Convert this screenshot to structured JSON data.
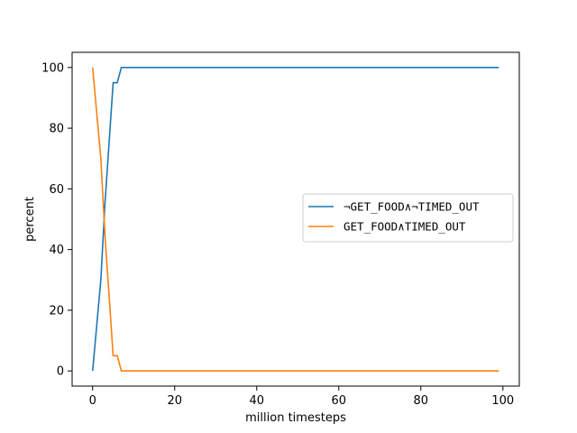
{
  "chart_data": {
    "type": "line",
    "xlabel": "million timesteps",
    "ylabel": "percent",
    "xlim": [
      -5,
      104
    ],
    "ylim": [
      -5,
      105
    ],
    "xticks": [
      0,
      20,
      40,
      60,
      80,
      100
    ],
    "yticks": [
      0,
      20,
      40,
      60,
      80,
      100
    ],
    "grid": false,
    "legend_position": "center-right",
    "series": [
      {
        "name": "¬GET_FOOD∧¬TIMED_OUT",
        "color": "#1f77b4",
        "x": [
          0,
          1,
          2,
          3,
          4,
          5,
          6,
          7,
          99
        ],
        "y": [
          0,
          15,
          30,
          55,
          75,
          95,
          95,
          100,
          100
        ]
      },
      {
        "name": "GET_FOOD∧TIMED_OUT",
        "color": "#ff7f0e",
        "x": [
          0,
          1,
          2,
          3,
          4,
          5,
          6,
          7,
          99
        ],
        "y": [
          100,
          85,
          70,
          45,
          25,
          5,
          5,
          0,
          0
        ]
      }
    ]
  }
}
